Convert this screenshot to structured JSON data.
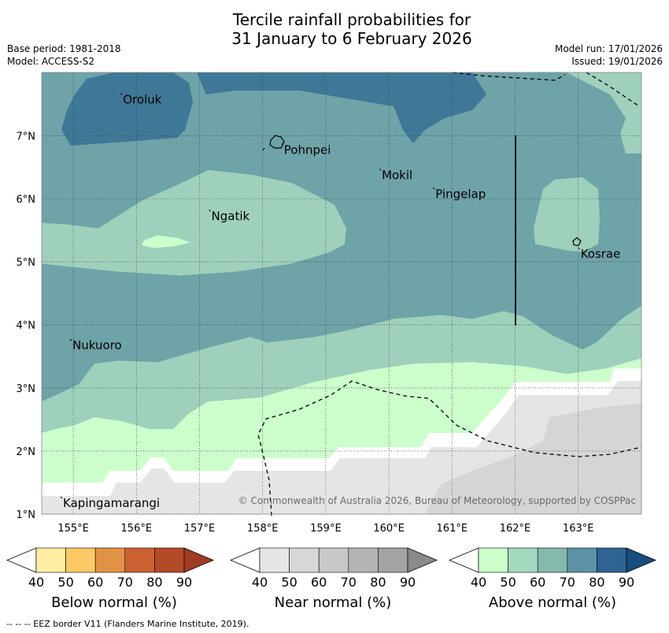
{
  "title": {
    "line1": "Tercile rainfall probabilities for",
    "line2": "31 January to 6 February 2026"
  },
  "header_left": {
    "base_period": "Base period: 1981-2018",
    "model": "Model: ACCESS-S2"
  },
  "header_right": {
    "model_run": "Model run: 17/01/2026",
    "issued": "Issued: 19/01/2026"
  },
  "map": {
    "lon_ticks": [
      "155°E",
      "156°E",
      "157°E",
      "158°E",
      "159°E",
      "160°E",
      "161°E",
      "162°E",
      "163°E"
    ],
    "lat_ticks": [
      "7°N",
      "6°N",
      "5°N",
      "4°N",
      "3°N",
      "2°N",
      "1°N"
    ],
    "places": [
      {
        "name": "Oroluk",
        "lon": 155.75,
        "lat": 7.65
      },
      {
        "name": "Pohnpei",
        "lon": 158.3,
        "lat": 6.85
      },
      {
        "name": "Mokil",
        "lon": 159.85,
        "lat": 6.45
      },
      {
        "name": "Pingelap",
        "lon": 160.7,
        "lat": 6.15
      },
      {
        "name": "Ngatik",
        "lon": 157.15,
        "lat": 5.8
      },
      {
        "name": "Kosrae",
        "lon": 163.0,
        "lat": 5.2
      },
      {
        "name": "Nukuoro",
        "lon": 154.95,
        "lat": 3.75
      },
      {
        "name": "Kapingamarangi",
        "lon": 154.8,
        "lat": 1.25
      }
    ],
    "copyright": "© Commonwealth of Australia 2026, Bureau of Meteorology, supported by COSPPac",
    "colors": {
      "above_90": "#174e7e",
      "above_80": "#3f7897",
      "above_70": "#6ea3a8",
      "above_60": "#86b9ad",
      "above_50": "#9ed0bb",
      "above_40": "#ccffcc",
      "near_40": "#e5e5e5",
      "near_50": "#d5d5d5",
      "near_60": "#c8c8c8",
      "white": "#ffffff"
    }
  },
  "colorbars": {
    "ticks": [
      "40",
      "50",
      "60",
      "70",
      "80",
      "90"
    ],
    "below": {
      "label": "Below normal (%)",
      "colors": [
        "#ffeea1",
        "#fdc966",
        "#e19345",
        "#cc6233",
        "#b34b28",
        "#a03b24"
      ]
    },
    "near": {
      "label": "Near normal (%)",
      "colors": [
        "#e6e6e6",
        "#d7d7d7",
        "#c8c8c8",
        "#b4b4b4",
        "#a3a3a3",
        "#8a8a8a"
      ]
    },
    "above": {
      "label": "Above normal (%)",
      "colors": [
        "#ccffcc",
        "#a2d9bf",
        "#86b9ad",
        "#5b92a6",
        "#2f6394",
        "#174e7e"
      ]
    }
  },
  "footer": "--  --  -- EEZ border V11 (Flanders Marine Institute, 2019)."
}
